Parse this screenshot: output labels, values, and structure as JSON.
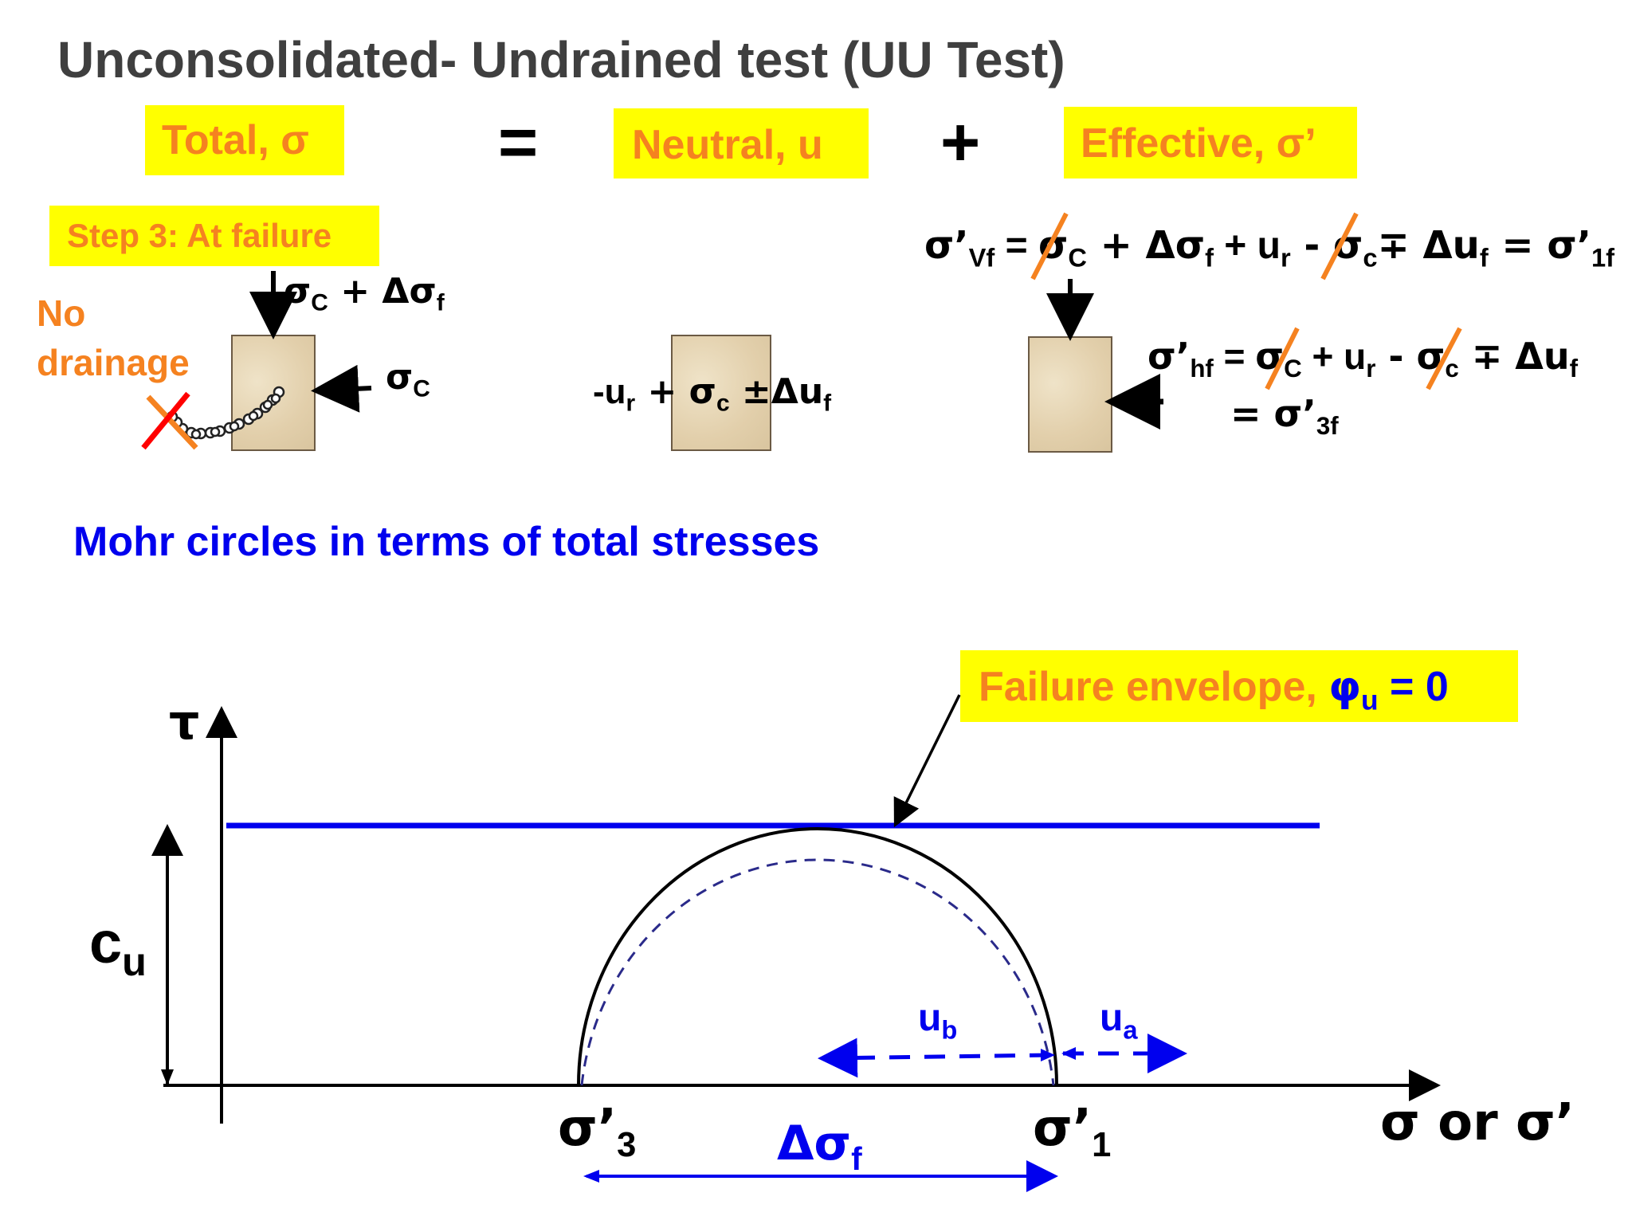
{
  "title": "Unconsolidated- Undrained test (UU Test)",
  "header": {
    "total": "Total, σ",
    "equals": "=",
    "neutral": "Neutral, u",
    "plus": "+",
    "effective": "Effective, σ’"
  },
  "step": {
    "label": "Step 3: At failure",
    "no_drainage_1": "No",
    "no_drainage_2": "drainage"
  },
  "total_stress": {
    "vertical_sigma": "σ",
    "vertical_sigma_sub": "C",
    "vertical_plus_delta": " + Δσ",
    "vertical_delta_sub": "f",
    "horizontal_sigma": "σ",
    "horizontal_sigma_sub": "C"
  },
  "neutral_stress": {
    "u_prefix": "-u",
    "u_sub": "r",
    "plus": " + σ",
    "sigma_sub": "c",
    "pm": " ±Δu",
    "du_sub": "f"
  },
  "effective_stress": {
    "vertical": {
      "lhs": "σ’",
      "lhs_sub": "Vf",
      "eq": " = ",
      "t1": "σ",
      "t1_sub": "C",
      "t2": " + Δσ",
      "t2_sub": "f",
      "t3": " + u",
      "t3_sub": "r",
      "t4": " - σ",
      "t4_sub": "c",
      "t5": "∓ Δu",
      "t5_sub": "f",
      "rhs": " = σ’",
      "rhs_sub": "1f"
    },
    "horizontal": {
      "lhs": "σ’",
      "lhs_sub": "hf",
      "eq": " = ",
      "t1": "σ",
      "t1_sub": "C",
      "t2": " + u",
      "t2_sub": "r",
      "t3": " - σ",
      "t3_sub": "c",
      "t4": " ∓ Δu",
      "t4_sub": "f",
      "line2": "= σ’",
      "line2_sub": "3f"
    }
  },
  "mohr": {
    "heading": "Mohr circles in terms of total stresses",
    "envelope_label": "Failure envelope, ",
    "envelope_phi": "φ",
    "envelope_phi_sub": "u",
    "envelope_value": " = 0",
    "tau": "τ",
    "cu": "c",
    "cu_sub": "u",
    "sigma3": "σ’",
    "sigma3_sub": "3",
    "sigma1": "σ’",
    "sigma1_sub": "1",
    "delta_sigma": "Δσ",
    "delta_sigma_sub": "f",
    "ub": "u",
    "ub_sub": "b",
    "ua": "u",
    "ua_sub": "a",
    "x_axis_label": "σ or σ’"
  },
  "colors": {
    "title": "#3f3f3f",
    "highlight": "#ffff00",
    "orange": "#f58220",
    "blue": "#0000ee",
    "strike_orange": "#f58220",
    "strike_red": "#ff0000"
  }
}
